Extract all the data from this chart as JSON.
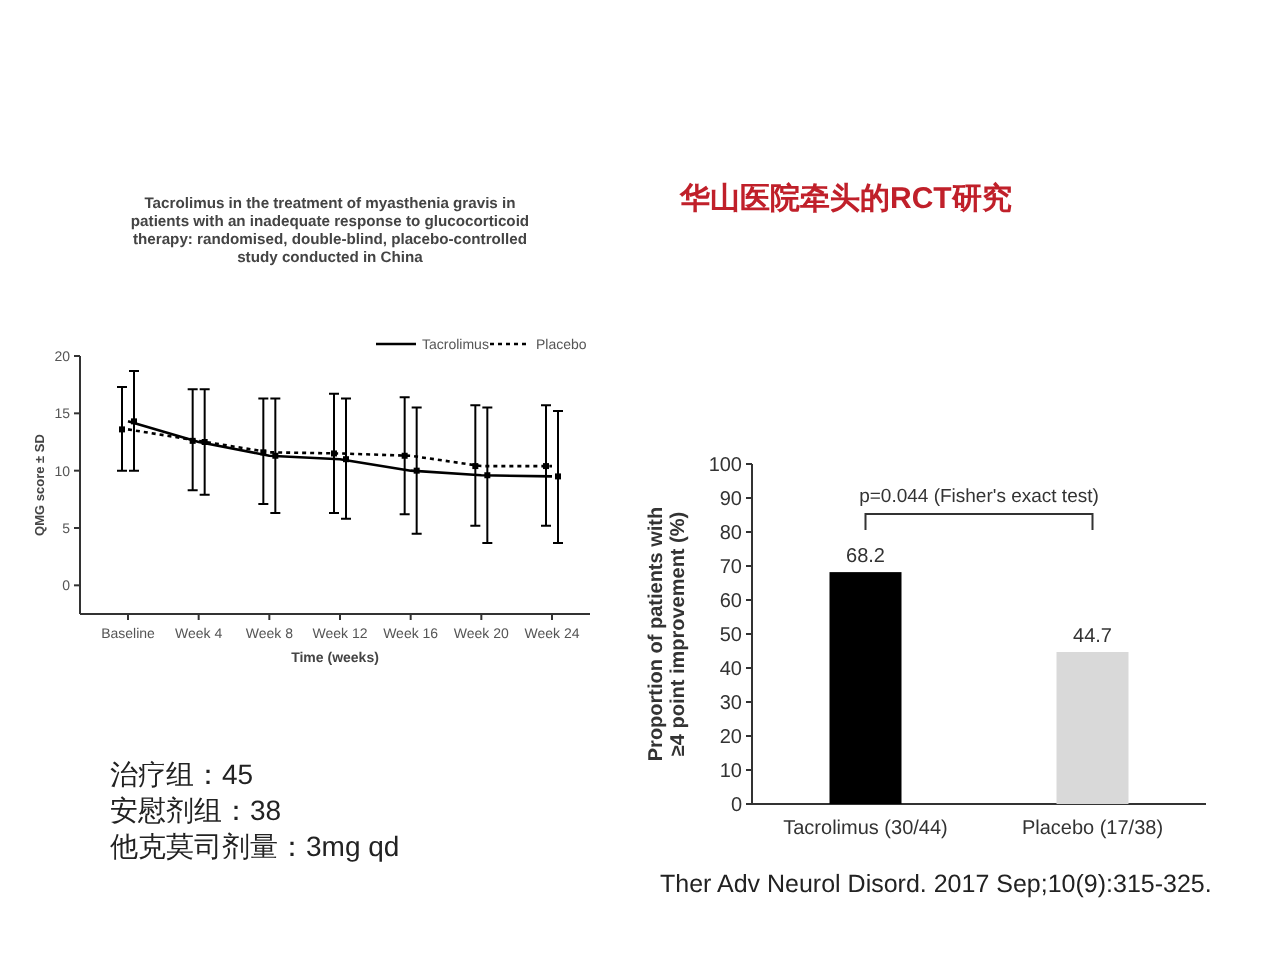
{
  "chart_data": [
    {
      "type": "line",
      "title": "Tacrolimus in the treatment of myasthenia gravis in patients with an inadequate response to glucocorticoid therapy: randomised, double-blind, placebo-controlled study conducted in China",
      "xlabel": "Time (weeks)",
      "ylabel": "QMG score ± SD",
      "categories": [
        "Baseline",
        "Week 4",
        "Week 8",
        "Week 12",
        "Week 16",
        "Week 20",
        "Week 24"
      ],
      "ylim": [
        -2.5,
        20
      ],
      "yticks": [
        0,
        5,
        10,
        15,
        20
      ],
      "legend": "top right",
      "marker": "square",
      "series": [
        {
          "name": "Tacrolimus",
          "color": "#000000",
          "line_style": "solid",
          "values": [
            14.3,
            12.5,
            11.3,
            11.0,
            10.0,
            9.6,
            9.5
          ],
          "errors": [
            [
              10.0,
              18.7
            ],
            [
              7.9,
              17.1
            ],
            [
              6.3,
              16.3
            ],
            [
              5.8,
              16.3
            ],
            [
              4.5,
              15.5
            ],
            [
              3.7,
              15.5
            ],
            [
              3.7,
              15.2
            ]
          ]
        },
        {
          "name": "Placebo",
          "color": "#000000",
          "line_style": "dotted",
          "values": [
            13.6,
            12.6,
            11.6,
            11.5,
            11.3,
            10.4,
            10.4
          ],
          "errors": [
            [
              10.0,
              17.3
            ],
            [
              8.3,
              17.1
            ],
            [
              7.1,
              16.3
            ],
            [
              6.3,
              16.7
            ],
            [
              6.2,
              16.4
            ],
            [
              5.2,
              15.7
            ],
            [
              5.2,
              15.7
            ]
          ]
        }
      ],
      "annotations": [
        "治疗组：45",
        "安慰剂组：38",
        "他克莫司剂量：3mg qd"
      ]
    },
    {
      "type": "bar",
      "title": "华山医院牵头的RCT研究",
      "ylabel": "Proportion of patients with ≥4 point improvement (%)",
      "categories": [
        "Tacrolimus (30/44)",
        "Placebo (17/38)"
      ],
      "values": [
        68.2,
        44.7
      ],
      "colors": [
        "#000000",
        "#d9d9d9"
      ],
      "ylim": [
        0,
        100
      ],
      "yticks": [
        0,
        10,
        20,
        30,
        40,
        50,
        60,
        70,
        80,
        90,
        100
      ],
      "data_labels": true,
      "annotations": [
        "p=0.044 (Fisher's exact test)",
        "Ther Adv Neurol Disord. 2017 Sep;10(9):315-325."
      ]
    }
  ]
}
